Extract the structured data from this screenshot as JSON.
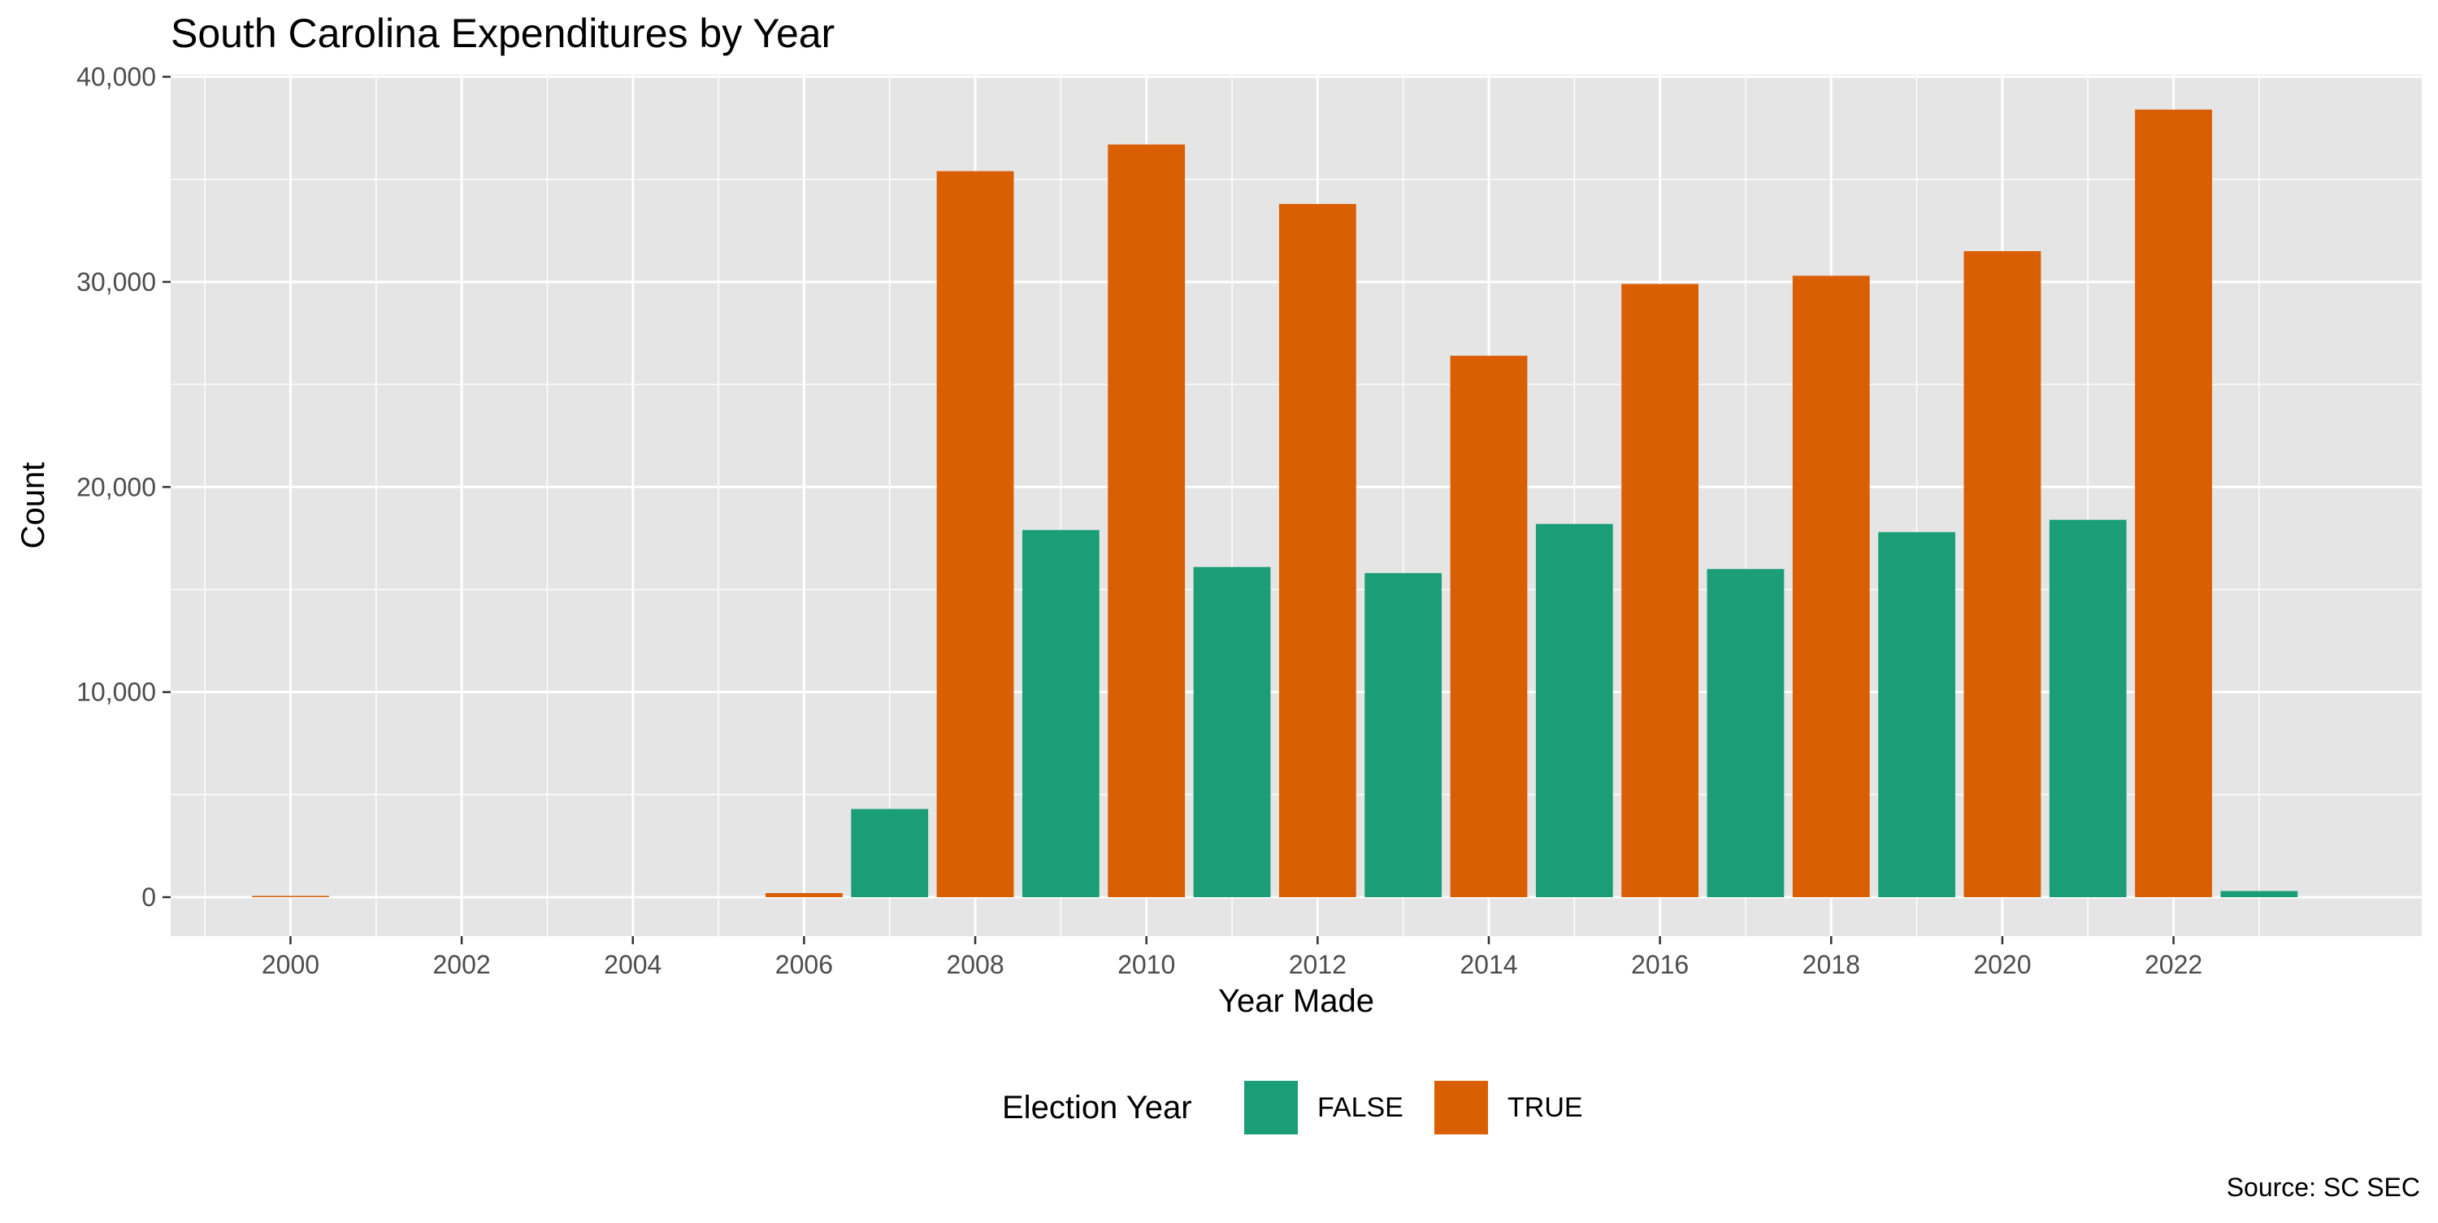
{
  "chart_data": {
    "type": "bar",
    "title": "South Carolina Expenditures by Year",
    "xlabel": "Year Made",
    "ylabel": "Count",
    "caption": "Source: SC SEC",
    "legend": {
      "title": "Election Year",
      "position": "bottom",
      "entries": [
        {
          "label": "FALSE",
          "color": "#1B9E77"
        },
        {
          "label": "TRUE",
          "color": "#D95F02"
        }
      ]
    },
    "x_range": [
      1998.6,
      2024.9
    ],
    "ylim": [
      -1900,
      40100
    ],
    "x_ticks": [
      2000,
      2002,
      2004,
      2006,
      2008,
      2010,
      2012,
      2014,
      2016,
      2018,
      2020,
      2022
    ],
    "y_ticks": [
      0,
      10000,
      20000,
      30000,
      40000
    ],
    "y_tick_labels": [
      "0",
      "10,000",
      "20,000",
      "30,000",
      "40,000"
    ],
    "grid": true,
    "colors": {
      "FALSE": "#1B9E77",
      "TRUE": "#D95F02",
      "panel_background": "#E5E5E5",
      "grid": "#FFFFFF"
    },
    "bars": [
      {
        "year": 2000,
        "value": 60,
        "election_year": "TRUE"
      },
      {
        "year": 2006,
        "value": 200,
        "election_year": "TRUE"
      },
      {
        "year": 2007,
        "value": 4300,
        "election_year": "FALSE"
      },
      {
        "year": 2008,
        "value": 35400,
        "election_year": "TRUE"
      },
      {
        "year": 2009,
        "value": 17900,
        "election_year": "FALSE"
      },
      {
        "year": 2010,
        "value": 36700,
        "election_year": "TRUE"
      },
      {
        "year": 2011,
        "value": 16100,
        "election_year": "FALSE"
      },
      {
        "year": 2012,
        "value": 33800,
        "election_year": "TRUE"
      },
      {
        "year": 2013,
        "value": 15800,
        "election_year": "FALSE"
      },
      {
        "year": 2014,
        "value": 26400,
        "election_year": "TRUE"
      },
      {
        "year": 2015,
        "value": 18200,
        "election_year": "FALSE"
      },
      {
        "year": 2016,
        "value": 29900,
        "election_year": "TRUE"
      },
      {
        "year": 2017,
        "value": 16000,
        "election_year": "FALSE"
      },
      {
        "year": 2018,
        "value": 30300,
        "election_year": "TRUE"
      },
      {
        "year": 2019,
        "value": 17800,
        "election_year": "FALSE"
      },
      {
        "year": 2020,
        "value": 31500,
        "election_year": "TRUE"
      },
      {
        "year": 2021,
        "value": 18400,
        "election_year": "FALSE"
      },
      {
        "year": 2022,
        "value": 38400,
        "election_year": "TRUE"
      },
      {
        "year": 2023,
        "value": 300,
        "election_year": "FALSE"
      }
    ]
  }
}
